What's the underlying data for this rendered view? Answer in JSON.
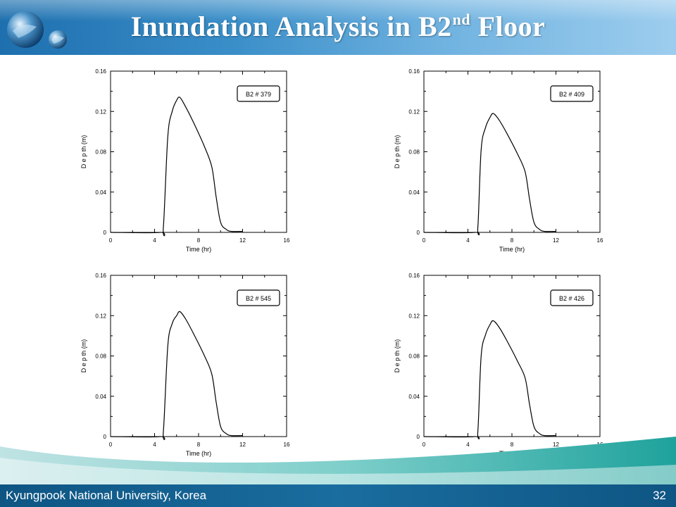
{
  "slide": {
    "title_main": "Inundation Analysis in B2",
    "title_sup": "nd",
    "title_end": " Floor",
    "footer_left": "Kyungpook National University, Korea",
    "page_number": "32"
  },
  "colors": {
    "header_blue": "#1d6fae",
    "footer_blue": "#0e5583",
    "swoosh_teal": "#2aa6a0"
  },
  "chart_data": [
    {
      "type": "line",
      "legend": "B2 # 379",
      "xlabel": "Time (hr)",
      "ylabel": "D e p th (m)",
      "xlim": [
        0,
        16
      ],
      "ylim": [
        0,
        0.16
      ],
      "xticks": [
        "0",
        "4",
        "8",
        "12",
        "16"
      ],
      "yticks": [
        "0",
        "0.04",
        "0.08",
        "0.12",
        "0.16"
      ],
      "grid": false,
      "legend_position": "top-right",
      "x": [
        0,
        4.5,
        4.8,
        5.2,
        5.6,
        6.0,
        6.3,
        6.8,
        7.5,
        8.5,
        9.2,
        9.6,
        10.0,
        10.5,
        11.0,
        12.0
      ],
      "y": [
        0,
        0,
        0.005,
        0.095,
        0.12,
        0.131,
        0.134,
        0.125,
        0.11,
        0.086,
        0.065,
        0.035,
        0.01,
        0.003,
        0.001,
        0.001
      ]
    },
    {
      "type": "line",
      "legend": "B2 # 409",
      "xlabel": "Time (hr)",
      "ylabel": "D e p th (m)",
      "xlim": [
        0,
        16
      ],
      "ylim": [
        0,
        0.16
      ],
      "xticks": [
        "0",
        "4",
        "8",
        "12",
        "16"
      ],
      "yticks": [
        "0",
        "0.04",
        "0.08",
        "0.12",
        "0.16"
      ],
      "grid": false,
      "legend_position": "top-right",
      "x": [
        0,
        4.6,
        4.9,
        5.2,
        5.6,
        6.0,
        6.3,
        6.8,
        7.5,
        8.5,
        9.2,
        9.6,
        10.0,
        10.5,
        11.0,
        12.0
      ],
      "y": [
        0,
        0,
        0.005,
        0.082,
        0.104,
        0.114,
        0.118,
        0.112,
        0.099,
        0.078,
        0.06,
        0.033,
        0.01,
        0.003,
        0.001,
        0.001
      ]
    },
    {
      "type": "line",
      "legend": "B2 # 545",
      "xlabel": "Time (hr)",
      "ylabel": "D e p th (m)",
      "xlim": [
        0,
        16
      ],
      "ylim": [
        0,
        0.16
      ],
      "xticks": [
        "0",
        "4",
        "8",
        "12",
        "16"
      ],
      "yticks": [
        "0",
        "0.04",
        "0.08",
        "0.12",
        "0.16"
      ],
      "grid": false,
      "legend_position": "top-right",
      "x": [
        0,
        4.5,
        4.8,
        5.2,
        5.6,
        6.0,
        6.3,
        6.8,
        7.5,
        8.5,
        9.2,
        9.6,
        10.0,
        10.5,
        11.0,
        12.0
      ],
      "y": [
        0,
        0,
        0.005,
        0.09,
        0.112,
        0.12,
        0.124,
        0.117,
        0.103,
        0.081,
        0.062,
        0.034,
        0.01,
        0.003,
        0.001,
        0.001
      ]
    },
    {
      "type": "line",
      "legend": "B2 # 426",
      "xlabel": "Time (hr)",
      "ylabel": "D e p th (m)",
      "xlim": [
        0,
        16
      ],
      "ylim": [
        0,
        0.16
      ],
      "xticks": [
        "0",
        "4",
        "8",
        "12",
        "16"
      ],
      "yticks": [
        "0",
        "0.04",
        "0.08",
        "0.12",
        "0.16"
      ],
      "grid": false,
      "legend_position": "top-right",
      "x": [
        0,
        4.6,
        4.9,
        5.2,
        5.6,
        6.0,
        6.3,
        6.8,
        7.5,
        8.5,
        9.2,
        9.6,
        10.0,
        10.5,
        11.0,
        12.0
      ],
      "y": [
        0,
        0,
        0.005,
        0.08,
        0.101,
        0.111,
        0.115,
        0.109,
        0.096,
        0.075,
        0.058,
        0.032,
        0.01,
        0.003,
        0.001,
        0.001
      ]
    }
  ]
}
